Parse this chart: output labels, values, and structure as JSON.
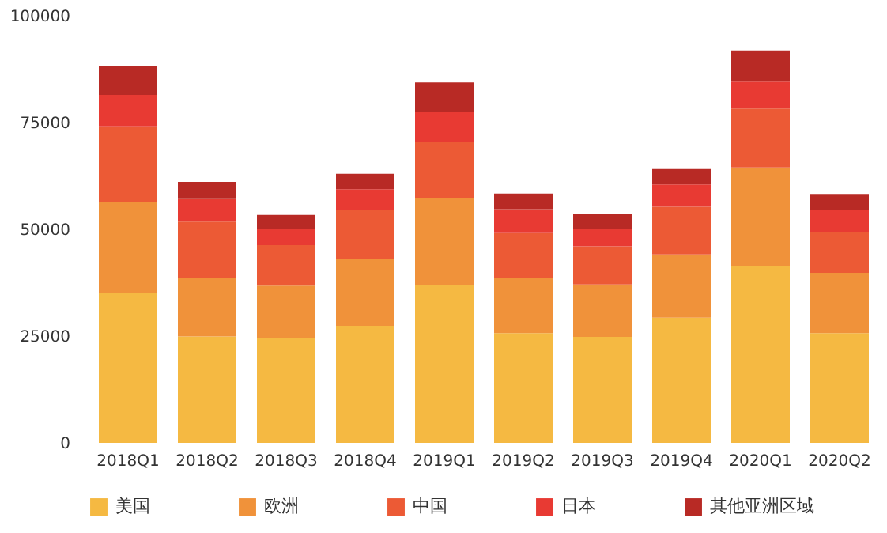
{
  "chart_data": {
    "type": "bar",
    "stacked": true,
    "categories": [
      "2018Q1",
      "2018Q2",
      "2018Q3",
      "2018Q4",
      "2019Q1",
      "2019Q2",
      "2019Q3",
      "2019Q4",
      "2020Q1",
      "2020Q2"
    ],
    "series": [
      {
        "name": "美国",
        "color": "#f5b942",
        "values": [
          35200,
          24900,
          24600,
          27400,
          37000,
          25700,
          24800,
          29300,
          41500,
          25700
        ]
      },
      {
        "name": "欧洲",
        "color": "#f0923a",
        "values": [
          21200,
          13700,
          12200,
          15600,
          20400,
          13000,
          12300,
          14800,
          23000,
          14100
        ]
      },
      {
        "name": "中国",
        "color": "#ec5a35",
        "values": [
          17700,
          13200,
          9500,
          11600,
          13000,
          10400,
          8900,
          11200,
          13800,
          9600
        ]
      },
      {
        "name": "日本",
        "color": "#e83a33",
        "values": [
          7400,
          5300,
          3800,
          4800,
          7000,
          5600,
          4100,
          5200,
          6300,
          5200
        ]
      },
      {
        "name": "其他亚洲区域",
        "color": "#b82a25",
        "values": [
          6700,
          4000,
          3300,
          3600,
          7000,
          3700,
          3600,
          3600,
          7300,
          3700
        ]
      }
    ],
    "ylim": [
      0,
      100000
    ],
    "yticks": [
      0,
      25000,
      50000,
      75000,
      100000
    ],
    "grid": false,
    "legend": "bottom"
  }
}
